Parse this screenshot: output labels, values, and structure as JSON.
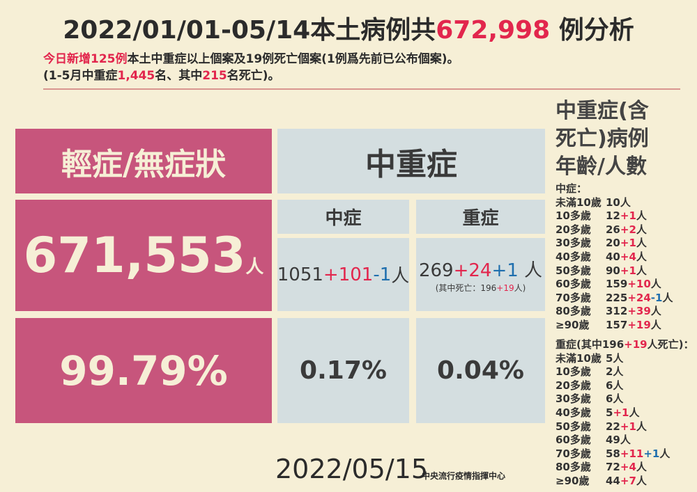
{
  "header": {
    "title": [
      {
        "text": "2022/01/01-05/14本土病例共",
        "color": "dark"
      },
      {
        "text": "672,998",
        "color": "red"
      },
      {
        "text": " 例分析",
        "color": "dark"
      }
    ],
    "subtitle": [
      [
        {
          "text": "今日新增125例",
          "color": "red"
        },
        {
          "text": "本土中重症以上個案及19例死亡個案(1例爲先前已公布個案)。",
          "color": "dark"
        }
      ],
      [
        {
          "text": "(1-5月中重症",
          "color": "dark"
        },
        {
          "text": "1,445",
          "color": "red"
        },
        {
          "text": "名、其中",
          "color": "dark"
        },
        {
          "text": "215",
          "color": "red"
        },
        {
          "text": "名死亡)。",
          "color": "dark"
        }
      ]
    ]
  },
  "mild": {
    "heading": "輕症/無症狀",
    "count": "671,553",
    "unit": "人",
    "percent": "99.79%"
  },
  "severe_group": {
    "heading": "中重症",
    "columns": [
      {
        "heading": "中症",
        "count": [
          {
            "text": "1051",
            "color": "dark"
          },
          {
            "text": "+101",
            "color": "red"
          },
          {
            "text": "-1",
            "color": "blue"
          },
          {
            "text": "人",
            "color": "dark"
          }
        ],
        "percent": "0.17%"
      },
      {
        "heading": "重症",
        "count": [
          {
            "text": "269",
            "color": "dark"
          },
          {
            "text": "+24",
            "color": "red"
          },
          {
            "text": "+1",
            "color": "blue"
          },
          {
            "text": " 人",
            "color": "dark"
          }
        ],
        "note": [
          {
            "text": "(其中死亡：196",
            "color": "dark"
          },
          {
            "text": "+19",
            "color": "red"
          },
          {
            "text": "人)",
            "color": "dark"
          }
        ],
        "percent": "0.04%"
      }
    ]
  },
  "sidebar": {
    "title": [
      "中重症(含",
      "死亡)病例",
      "年齡/人數"
    ],
    "moderate": {
      "label": [
        {
          "text": "中症：",
          "color": "dark"
        }
      ],
      "rows": [
        {
          "age": "未滿10歲",
          "count": [
            {
              "text": "10人",
              "color": "dark"
            }
          ]
        },
        {
          "age": "10多歲",
          "count": [
            {
              "text": "12",
              "color": "dark"
            },
            {
              "text": "+1",
              "color": "red"
            },
            {
              "text": "人",
              "color": "dark"
            }
          ]
        },
        {
          "age": "20多歲",
          "count": [
            {
              "text": "26",
              "color": "dark"
            },
            {
              "text": "+2",
              "color": "red"
            },
            {
              "text": "人",
              "color": "dark"
            }
          ]
        },
        {
          "age": "30多歲",
          "count": [
            {
              "text": "20",
              "color": "dark"
            },
            {
              "text": "+1",
              "color": "red"
            },
            {
              "text": "人",
              "color": "dark"
            }
          ]
        },
        {
          "age": "40多歲",
          "count": [
            {
              "text": "40",
              "color": "dark"
            },
            {
              "text": "+4",
              "color": "red"
            },
            {
              "text": "人",
              "color": "dark"
            }
          ]
        },
        {
          "age": "50多歲",
          "count": [
            {
              "text": "90",
              "color": "dark"
            },
            {
              "text": "+1",
              "color": "red"
            },
            {
              "text": "人",
              "color": "dark"
            }
          ]
        },
        {
          "age": "60多歲",
          "count": [
            {
              "text": "159",
              "color": "dark"
            },
            {
              "text": "+10",
              "color": "red"
            },
            {
              "text": "人",
              "color": "dark"
            }
          ]
        },
        {
          "age": "70多歲",
          "count": [
            {
              "text": "225",
              "color": "dark"
            },
            {
              "text": "+24",
              "color": "red"
            },
            {
              "text": "-1",
              "color": "blue"
            },
            {
              "text": "人",
              "color": "dark"
            }
          ]
        },
        {
          "age": "80多歲",
          "count": [
            {
              "text": "312",
              "color": "dark"
            },
            {
              "text": "+39",
              "color": "red"
            },
            {
              "text": "人",
              "color": "dark"
            }
          ]
        },
        {
          "age": "≥90歲",
          "count": [
            {
              "text": "157",
              "color": "dark"
            },
            {
              "text": "+19",
              "color": "red"
            },
            {
              "text": "人",
              "color": "dark"
            }
          ]
        }
      ]
    },
    "severe": {
      "label": [
        {
          "text": "重症(其中196",
          "color": "dark"
        },
        {
          "text": "+19",
          "color": "red"
        },
        {
          "text": "人死亡)：",
          "color": "dark"
        }
      ],
      "rows": [
        {
          "age": "未滿10歲",
          "count": [
            {
              "text": "5人",
              "color": "dark"
            }
          ]
        },
        {
          "age": "10多歲",
          "count": [
            {
              "text": "2人",
              "color": "dark"
            }
          ]
        },
        {
          "age": "20多歲",
          "count": [
            {
              "text": "6人",
              "color": "dark"
            }
          ]
        },
        {
          "age": "30多歲",
          "count": [
            {
              "text": "6人",
              "color": "dark"
            }
          ]
        },
        {
          "age": "40多歲",
          "count": [
            {
              "text": "5",
              "color": "dark"
            },
            {
              "text": "+1",
              "color": "red"
            },
            {
              "text": "人",
              "color": "dark"
            }
          ]
        },
        {
          "age": "50多歲",
          "count": [
            {
              "text": "22",
              "color": "dark"
            },
            {
              "text": "+1",
              "color": "red"
            },
            {
              "text": "人",
              "color": "dark"
            }
          ]
        },
        {
          "age": "60多歲",
          "count": [
            {
              "text": "49人",
              "color": "dark"
            }
          ]
        },
        {
          "age": "70多歲",
          "count": [
            {
              "text": "58",
              "color": "dark"
            },
            {
              "text": "+11",
              "color": "red"
            },
            {
              "text": "+1",
              "color": "blue"
            },
            {
              "text": "人",
              "color": "dark"
            }
          ]
        },
        {
          "age": "80多歲",
          "count": [
            {
              "text": "72",
              "color": "dark"
            },
            {
              "text": "+4",
              "color": "red"
            },
            {
              "text": "人",
              "color": "dark"
            }
          ]
        },
        {
          "age": "≥90歲",
          "count": [
            {
              "text": "44",
              "color": "dark"
            },
            {
              "text": "+7",
              "color": "red"
            },
            {
              "text": "人",
              "color": "dark"
            }
          ]
        }
      ]
    }
  },
  "footer": {
    "date": "2022/05/15",
    "org": "中央流行疫情指揮中心"
  }
}
